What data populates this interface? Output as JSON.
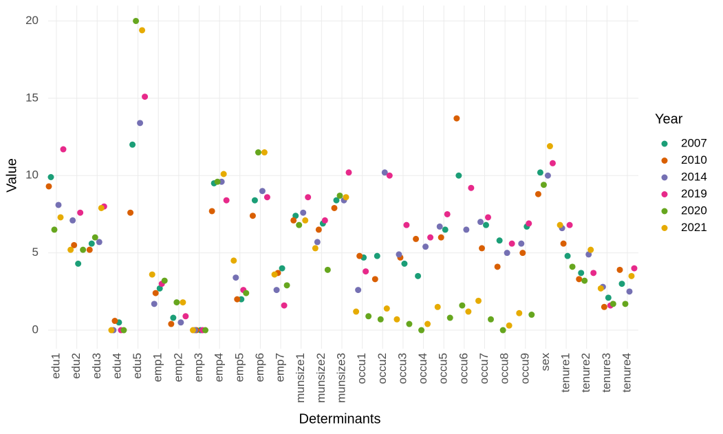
{
  "chart_data": {
    "type": "scatter",
    "x_label": "Determinants",
    "y_label": "Value",
    "legend_title": "Year",
    "categories": [
      "edu1",
      "edu2",
      "edu3",
      "edu4",
      "edu5",
      "emp1",
      "emp2",
      "emp3",
      "emp4",
      "emp5",
      "emp6",
      "emp7",
      "munsize1",
      "munsize2",
      "munsize3",
      "occu1",
      "occu2",
      "occu3",
      "occu4",
      "occu5",
      "occu6",
      "occu7",
      "occu8",
      "occu9",
      "sex",
      "tenure1",
      "tenure2",
      "tenure3",
      "tenure4"
    ],
    "series": [
      {
        "name": "2007",
        "color": "#1b9e77",
        "values": [
          9.9,
          4.3,
          5.6,
          0.5,
          12.0,
          2.7,
          0.8,
          0,
          9.5,
          2.0,
          8.4,
          4.0,
          7.4,
          6.9,
          8.4,
          4.7,
          4.8,
          4.3,
          3.5,
          6.5,
          10.0,
          6.8,
          5.8,
          6.7,
          10.2,
          4.8,
          3.7,
          2.1,
          3.0
        ]
      },
      {
        "name": "2010",
        "color": "#d95f02",
        "values": [
          9.3,
          5.5,
          5.2,
          0.6,
          7.6,
          2.4,
          0.4,
          0,
          7.7,
          2.0,
          7.4,
          3.7,
          7.1,
          6.5,
          7.9,
          4.8,
          3.3,
          4.7,
          5.9,
          6.0,
          13.7,
          5.3,
          4.1,
          5.0,
          8.8,
          5.6,
          3.3,
          1.5,
          3.9
        ]
      },
      {
        "name": "2014",
        "color": "#7570b3",
        "values": [
          8.1,
          7.1,
          5.7,
          0,
          13.4,
          1.7,
          0.5,
          0,
          9.6,
          3.4,
          9.0,
          2.6,
          7.6,
          5.7,
          8.4,
          2.6,
          10.2,
          4.9,
          5.4,
          6.7,
          6.5,
          7.0,
          5.0,
          5.6,
          10.0,
          6.6,
          4.9,
          2.8,
          2.5
        ]
      },
      {
        "name": "2019",
        "color": "#e7298a",
        "values": [
          11.7,
          7.6,
          8.0,
          0,
          15.1,
          3.0,
          0.9,
          0,
          8.4,
          2.6,
          8.6,
          1.6,
          8.6,
          7.1,
          10.2,
          3.8,
          10.0,
          6.8,
          6.0,
          7.5,
          9.2,
          7.3,
          5.6,
          6.9,
          10.8,
          6.8,
          3.7,
          1.6,
          4.0
        ]
      },
      {
        "name": "2020",
        "color": "#66a61e",
        "values": [
          6.5,
          5.2,
          6.0,
          0,
          20,
          3.2,
          1.8,
          0,
          9.6,
          2.4,
          11.5,
          2.9,
          6.8,
          3.9,
          8.7,
          0.9,
          0.7,
          0.4,
          0,
          0.8,
          1.6,
          0.7,
          0,
          1.0,
          9.4,
          4.1,
          3.2,
          1.7,
          1.7
        ]
      },
      {
        "name": "2021",
        "color": "#e6ab02",
        "values": [
          7.3,
          5.2,
          7.9,
          0,
          19.4,
          3.6,
          1.8,
          0,
          10.1,
          4.5,
          11.5,
          3.6,
          7.1,
          5.3,
          8.6,
          1.2,
          1.4,
          0.7,
          0.4,
          1.5,
          1.2,
          1.9,
          0.3,
          1.1,
          11.9,
          6.8,
          5.2,
          2.7,
          3.5
        ]
      }
    ],
    "ylim": [
      -1.2,
      21
    ],
    "yticks": [
      0,
      5,
      10,
      15,
      20
    ],
    "grid": true
  }
}
